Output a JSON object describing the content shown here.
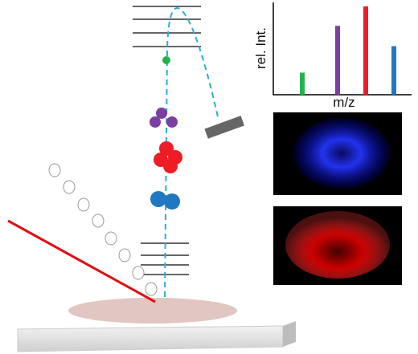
{
  "spectrum": {
    "x_label": "m/z",
    "y_label": "rel. Int.",
    "bars": [
      {
        "color": "#22b34c",
        "value": 25
      },
      {
        "color": "#7b3fa0",
        "value": 78
      },
      {
        "color": "#ee1c24",
        "value": 100
      },
      {
        "color": "#1f78c1",
        "value": 55
      }
    ]
  }
}
